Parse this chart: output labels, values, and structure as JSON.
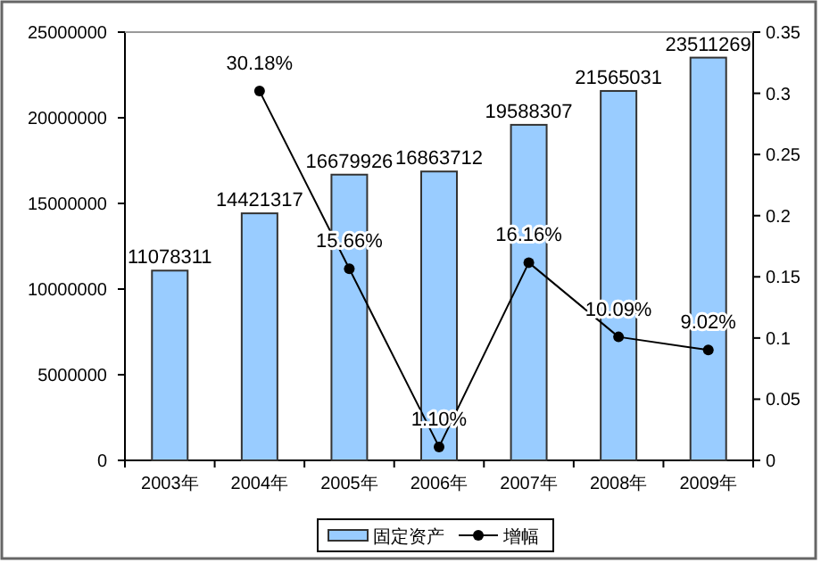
{
  "chart_data": {
    "type": "bar",
    "categories": [
      "2003年",
      "2004年",
      "2005年",
      "2006年",
      "2007年",
      "2008年",
      "2009年"
    ],
    "series": [
      {
        "name": "固定资产",
        "color": "#99ccff",
        "values": [
          11078311,
          14421317,
          16679926,
          16863712,
          19588307,
          21565031,
          23511269
        ],
        "value_labels": [
          "11078311",
          "14421317",
          "16679926",
          "16863712",
          "19588307",
          "21565031",
          "23511269"
        ]
      },
      {
        "name": "增幅",
        "type": "line",
        "axis": "y2",
        "color": "#000000",
        "marker": "circle",
        "values": [
          null,
          0.3018,
          0.1566,
          0.011,
          0.1616,
          0.1009,
          0.0902
        ],
        "value_labels": [
          null,
          "30.18%",
          "15.66%",
          "1.10%",
          "16.16%",
          "10.09%",
          "9.02%"
        ]
      }
    ],
    "ylim": [
      0,
      25000000
    ],
    "yticks": [
      0,
      5000000,
      10000000,
      15000000,
      20000000,
      25000000
    ],
    "y2lim": [
      0,
      0.35
    ],
    "y2ticks": [
      0,
      0.05,
      0.1,
      0.15,
      0.2,
      0.25,
      0.3,
      0.35
    ],
    "grid": false,
    "legend": "bottom"
  }
}
